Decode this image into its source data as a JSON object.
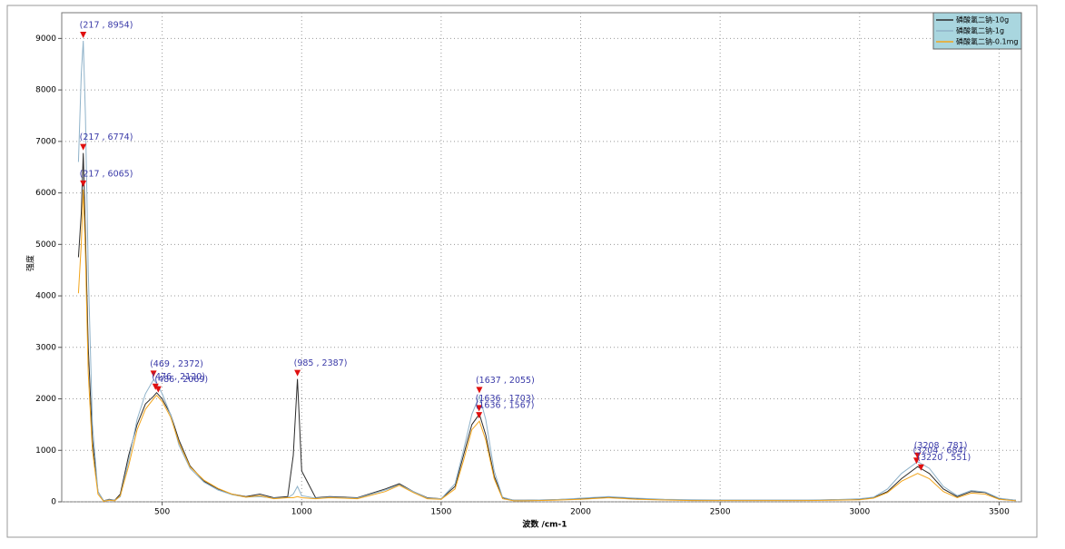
{
  "chart_data": {
    "type": "line",
    "x_label": "波数 /cm-1",
    "y_label": "强度",
    "xlim": [
      140,
      3580
    ],
    "ylim": [
      0,
      9500
    ],
    "xticks": [
      500,
      1000,
      1500,
      2000,
      2500,
      3000,
      3500
    ],
    "yticks": [
      0,
      1000,
      2000,
      3000,
      4000,
      5000,
      6000,
      7000,
      8000,
      9000
    ],
    "grid": true,
    "legend": "upper right",
    "x": [
      200,
      210,
      217,
      225,
      235,
      250,
      270,
      290,
      310,
      330,
      350,
      380,
      410,
      440,
      469,
      480,
      500,
      530,
      560,
      600,
      650,
      700,
      750,
      800,
      850,
      900,
      950,
      970,
      985,
      1000,
      1050,
      1100,
      1200,
      1300,
      1350,
      1400,
      1450,
      1500,
      1550,
      1580,
      1610,
      1637,
      1660,
      1690,
      1720,
      1760,
      1800,
      1900,
      2000,
      2100,
      2200,
      2300,
      2400,
      2500,
      2600,
      2700,
      2800,
      2900,
      3000,
      3050,
      3100,
      3150,
      3208,
      3250,
      3300,
      3350,
      3400,
      3450,
      3500,
      3560
    ],
    "series": [
      {
        "name": "磷酸氢二钠-10g",
        "color": "#2b2b2b",
        "values": [
          4750,
          5600,
          6774,
          5200,
          3000,
          1200,
          200,
          20,
          50,
          30,
          150,
          900,
          1500,
          1900,
          2050,
          2120,
          2000,
          1700,
          1200,
          700,
          400,
          250,
          150,
          100,
          150,
          80,
          100,
          900,
          2387,
          600,
          80,
          100,
          80,
          250,
          350,
          200,
          80,
          60,
          300,
          900,
          1500,
          1703,
          1300,
          500,
          80,
          30,
          30,
          40,
          60,
          90,
          60,
          40,
          30,
          30,
          30,
          30,
          30,
          40,
          50,
          80,
          200,
          450,
          684,
          550,
          250,
          100,
          200,
          180,
          60,
          30
        ]
      },
      {
        "name": "磷酸氢二钠-1g",
        "color": "#8fb2c9",
        "values": [
          6600,
          8300,
          8954,
          7500,
          4500,
          1500,
          200,
          20,
          40,
          30,
          100,
          800,
          1600,
          2100,
          2372,
          2300,
          2100,
          1700,
          1100,
          650,
          380,
          230,
          140,
          90,
          100,
          70,
          80,
          150,
          300,
          120,
          70,
          90,
          70,
          230,
          330,
          200,
          70,
          60,
          350,
          1000,
          1700,
          2055,
          1600,
          600,
          90,
          30,
          30,
          40,
          70,
          100,
          70,
          50,
          40,
          35,
          35,
          35,
          35,
          40,
          60,
          90,
          250,
          550,
          781,
          650,
          300,
          120,
          220,
          190,
          70,
          30
        ]
      },
      {
        "name": "磷酸氢二钠-0.1mg",
        "color": "#f2a51c",
        "values": [
          4050,
          5000,
          6065,
          4800,
          2500,
          1000,
          150,
          10,
          30,
          20,
          120,
          700,
          1400,
          1800,
          2000,
          2069,
          1950,
          1650,
          1150,
          680,
          420,
          260,
          150,
          90,
          120,
          60,
          80,
          80,
          100,
          80,
          60,
          80,
          60,
          200,
          320,
          180,
          60,
          50,
          250,
          800,
          1400,
          1567,
          1200,
          450,
          60,
          20,
          20,
          30,
          50,
          80,
          50,
          35,
          25,
          25,
          25,
          25,
          25,
          30,
          40,
          70,
          180,
          400,
          551,
          450,
          200,
          80,
          170,
          150,
          50,
          20
        ]
      }
    ],
    "annotations": [
      {
        "label": "(217 , 8954)",
        "x": 217,
        "y": 8954
      },
      {
        "label": "(217 , 6774)",
        "x": 217,
        "y": 6774
      },
      {
        "label": "(217 , 6065)",
        "x": 217,
        "y": 6065
      },
      {
        "label": "(469 , 2372)",
        "x": 469,
        "y": 2372
      },
      {
        "label": "(476 , 2120)",
        "x": 476,
        "y": 2120
      },
      {
        "label": "(486 , 2069)",
        "x": 486,
        "y": 2069
      },
      {
        "label": "(985 , 2387)",
        "x": 985,
        "y": 2387
      },
      {
        "label": "(1637 , 2055)",
        "x": 1637,
        "y": 2055
      },
      {
        "label": "(1636 , 1703)",
        "x": 1636,
        "y": 1703
      },
      {
        "label": "(1636 , 1567)",
        "x": 1636,
        "y": 1567
      },
      {
        "label": "(3208 , 781)",
        "x": 3208,
        "y": 781
      },
      {
        "label": "(3204 , 684)",
        "x": 3204,
        "y": 684
      },
      {
        "label": "(3220 , 551)",
        "x": 3220,
        "y": 551
      }
    ]
  }
}
